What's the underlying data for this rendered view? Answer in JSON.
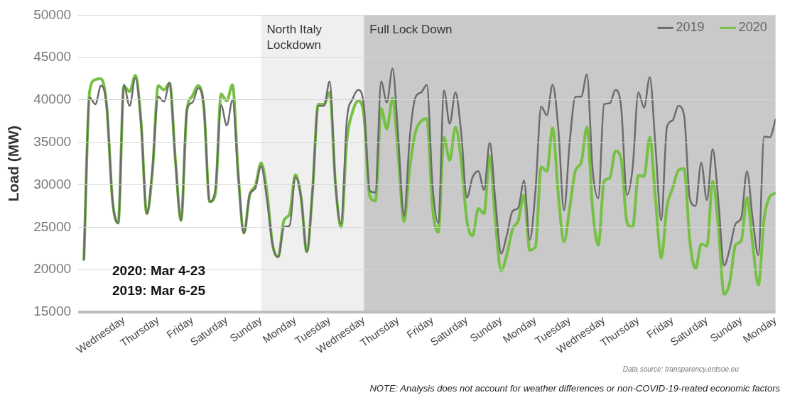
{
  "chart_data": {
    "type": "line",
    "ylabel": "Load (MW)",
    "categories": [
      null,
      null,
      null,
      null,
      null,
      null,
      null,
      null,
      "Wednesday",
      null,
      null,
      null,
      null,
      null,
      "Thursday",
      null,
      null,
      null,
      null,
      null,
      "Friday",
      null,
      null,
      null,
      null,
      null,
      "Saturday",
      null,
      null,
      null,
      null,
      null,
      "Sunday",
      null,
      null,
      null,
      null,
      null,
      "Monday",
      null,
      null,
      null,
      null,
      null,
      "Tuesday",
      null,
      null,
      null,
      null,
      null,
      "Wednesday",
      null,
      null,
      null,
      null,
      null,
      "Thursday",
      null,
      null,
      null,
      null,
      null,
      "Friday",
      null,
      null,
      null,
      null,
      null,
      "Saturday",
      null,
      null,
      null,
      null,
      null,
      "Sunday",
      null,
      null,
      null,
      null,
      null,
      "Monday",
      null,
      null,
      null,
      null,
      null,
      "Tuesday",
      null,
      null,
      null,
      null,
      null,
      "Wednesday",
      null,
      null,
      null,
      null,
      null,
      "Thursday",
      null,
      null,
      null,
      null,
      null,
      "Friday",
      null,
      null,
      null,
      null,
      null,
      "Saturday",
      null,
      null,
      null,
      null,
      null,
      "Sunday",
      null,
      null,
      null,
      null,
      null,
      "Monday"
    ],
    "ylim": [
      15000,
      50000
    ],
    "yticks": [
      15000,
      20000,
      25000,
      30000,
      35000,
      40000,
      45000,
      50000
    ],
    "grid": "y",
    "legend": "top right",
    "marker": "none",
    "line_style": "solid",
    "annotations": [
      "North Italy Lockdown",
      "Full Lock Down",
      "2020: Mar 4-23",
      "2019: Mar 6-25",
      "Data source: transparency.entsoe.eu",
      "NOTE: Analysis does not account for weather differences or non-COVID-19-reated economic factors"
    ],
    "series": [
      {
        "name": "2019",
        "color": "#6b6b6b",
        "values": [
          null,
          21200,
          40300,
          39500,
          41700,
          39200,
          28200,
          25500,
          41800,
          39300,
          42600,
          37400,
          26600,
          32000,
          40400,
          39800,
          42000,
          33000,
          25800,
          38800,
          39700,
          41400,
          39100,
          28000,
          29500,
          39400,
          37000,
          40000,
          31000,
          24300,
          28800,
          29600,
          32200,
          28400,
          23000,
          21500,
          25000,
          25200,
          30900,
          28500,
          22100,
          29300,
          39300,
          39300,
          42200,
          30200,
          25400,
          37600,
          40100,
          41200,
          39200,
          29300,
          29100,
          42200,
          39700,
          43700,
          35500,
          26300,
          35500,
          40300,
          40900,
          41800,
          29900,
          25500,
          41100,
          37200,
          40900,
          36200,
          28500,
          30900,
          31600,
          29400,
          35000,
          28000,
          21900,
          24100,
          26900,
          27300,
          30500,
          23500,
          29300,
          39200,
          38200,
          41800,
          36600,
          27000,
          35100,
          40400,
          40400,
          43000,
          31800,
          28400,
          39500,
          39600,
          41200,
          39100,
          28800,
          32000,
          40900,
          39100,
          42700,
          34500,
          25800,
          36800,
          37600,
          39300,
          38200,
          28400,
          27500,
          32600,
          28200,
          34200,
          28100,
          20500,
          22500,
          25400,
          26100,
          31600,
          26000,
          21700,
          35700,
          35600,
          37700
        ]
      },
      {
        "name": "2020",
        "color": "#76c043",
        "values": [
          null,
          21200,
          41000,
          42400,
          42500,
          39200,
          28200,
          25500,
          41600,
          41000,
          42900,
          37400,
          26600,
          31600,
          41700,
          41200,
          42000,
          33000,
          25800,
          38600,
          40500,
          41700,
          39100,
          28000,
          28900,
          40700,
          39900,
          41800,
          31300,
          24300,
          28800,
          29900,
          32600,
          29300,
          23000,
          21500,
          25800,
          26600,
          31200,
          28500,
          22100,
          29300,
          39500,
          39500,
          40900,
          30200,
          25000,
          35200,
          38600,
          39900,
          38100,
          28700,
          28100,
          39000,
          36600,
          40200,
          33400,
          25700,
          32000,
          36200,
          37500,
          37800,
          27300,
          24400,
          35600,
          32900,
          36800,
          32900,
          25800,
          24000,
          27200,
          26600,
          33400,
          25600,
          19900,
          21800,
          24800,
          25800,
          28800,
          22300,
          22700,
          32100,
          31600,
          36700,
          28800,
          23300,
          27300,
          31700,
          32600,
          36800,
          27100,
          22900,
          30400,
          30800,
          34000,
          33000,
          25600,
          25000,
          31100,
          31000,
          35600,
          28300,
          21400,
          27400,
          29600,
          31700,
          31900,
          23400,
          20100,
          23000,
          22800,
          30400,
          25000,
          17100,
          18500,
          22900,
          23400,
          28500,
          23000,
          18200,
          26000,
          28600,
          29000
        ]
      }
    ]
  }
}
